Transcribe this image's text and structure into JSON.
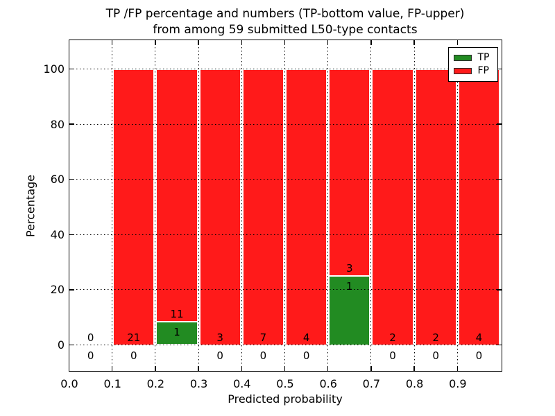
{
  "chart_data": {
    "type": "bar",
    "stacked": true,
    "title_line1": "TP /FP percentage and numbers (TP-bottom value, FP-upper)",
    "title_line2": "from among 59 submitted L50-type contacts",
    "xlabel": "Predicted probability",
    "ylabel": "Percentage",
    "xlim": [
      0.0,
      1.0
    ],
    "ylim": [
      -9,
      110.5
    ],
    "xticks": [
      "0.0",
      "0.1",
      "0.2",
      "0.3",
      "0.4",
      "0.5",
      "0.6",
      "0.7",
      "0.8",
      "0.9"
    ],
    "yticks": [
      0,
      20,
      40,
      60,
      80,
      100
    ],
    "grid": "dotted",
    "legend_position": "upper right",
    "legend": [
      {
        "label": "TP",
        "color": "#228b22"
      },
      {
        "label": "FP",
        "color": "#ff1a1a"
      }
    ],
    "colors": {
      "tp_green": "#228b22",
      "fp_red": "#ff1a1a",
      "grid": "#000000",
      "text": "#000000",
      "background": "#ffffff"
    },
    "bins": [
      {
        "range": "0.0-0.1",
        "tp": 0,
        "fp": 0,
        "tp_pct": 0,
        "fp_pct": 0
      },
      {
        "range": "0.1-0.2",
        "tp": 0,
        "fp": 21,
        "tp_pct": 0,
        "fp_pct": 100
      },
      {
        "range": "0.2-0.3",
        "tp": 1,
        "fp": 11,
        "tp_pct": 8.33,
        "fp_pct": 91.67
      },
      {
        "range": "0.3-0.4",
        "tp": 0,
        "fp": 3,
        "tp_pct": 0,
        "fp_pct": 100
      },
      {
        "range": "0.4-0.5",
        "tp": 0,
        "fp": 7,
        "tp_pct": 0,
        "fp_pct": 100
      },
      {
        "range": "0.5-0.6",
        "tp": 0,
        "fp": 4,
        "tp_pct": 0,
        "fp_pct": 100
      },
      {
        "range": "0.6-0.7",
        "tp": 1,
        "fp": 3,
        "tp_pct": 25,
        "fp_pct": 75
      },
      {
        "range": "0.7-0.8",
        "tp": 0,
        "fp": 2,
        "tp_pct": 0,
        "fp_pct": 100
      },
      {
        "range": "0.8-0.9",
        "tp": 0,
        "fp": 2,
        "tp_pct": 0,
        "fp_pct": 100
      },
      {
        "range": "0.9-1.0",
        "tp": 0,
        "fp": 4,
        "tp_pct": 0,
        "fp_pct": 100
      }
    ]
  }
}
